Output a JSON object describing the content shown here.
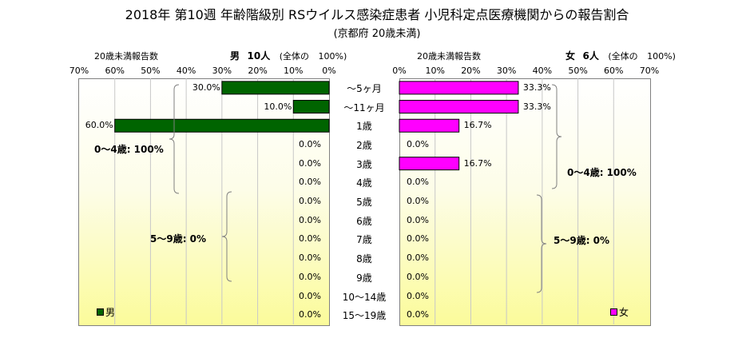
{
  "title": "2018年 第10週 年齢階級別 RSウイルス感染症患者 小児科定点医療機関からの報告割合",
  "subtitle": "(京都府 20歳未満)",
  "male_header": {
    "left": "20歳未満報告数",
    "sex": "男",
    "count": "10人",
    "basis": "(全体の",
    "pct": "100%)"
  },
  "female_header": {
    "left": "20歳未満報告数",
    "sex": "女",
    "count": "6人",
    "basis": "(全体の",
    "pct": "100%)"
  },
  "summaries": {
    "male_0_4": "0～4歳: 100%",
    "male_5_9": "5～9歳: 0%",
    "female_0_4": "0～4歳: 100%",
    "female_5_9": "5～9歳: 0%"
  },
  "colors": {
    "male": "#006400",
    "female": "#ff00ff"
  },
  "chart_data": {
    "type": "bar",
    "orientation": "horizontal-butterfly",
    "categories": [
      "～5ヶ月",
      "～11ヶ月",
      "1歳",
      "2歳",
      "3歳",
      "4歳",
      "5歳",
      "6歳",
      "7歳",
      "8歳",
      "9歳",
      "10～14歳",
      "15～19歳"
    ],
    "xlim": [
      0,
      70
    ],
    "ticks": [
      "0%",
      "10%",
      "20%",
      "30%",
      "40%",
      "50%",
      "60%",
      "70%"
    ],
    "series": [
      {
        "name": "男",
        "values": [
          30.0,
          10.0,
          60.0,
          0,
          0,
          0,
          0,
          0,
          0,
          0,
          0,
          0,
          0
        ],
        "labels": [
          "30.0%",
          "10.0%",
          "60.0%",
          "0.0%",
          "0.0%",
          "0.0%",
          "0.0%",
          "0.0%",
          "0.0%",
          "0.0%",
          "0.0%",
          "0.0%",
          "0.0%"
        ]
      },
      {
        "name": "女",
        "values": [
          33.3,
          33.3,
          16.7,
          0,
          16.7,
          0,
          0,
          0,
          0,
          0,
          0,
          0,
          0
        ],
        "labels": [
          "33.3%",
          "33.3%",
          "16.7%",
          "0.0%",
          "16.7%",
          "0.0%",
          "0.0%",
          "0.0%",
          "0.0%",
          "0.0%",
          "0.0%",
          "0.0%",
          "0.0%"
        ]
      }
    ],
    "grid": true,
    "legend": "bottom-corner"
  }
}
